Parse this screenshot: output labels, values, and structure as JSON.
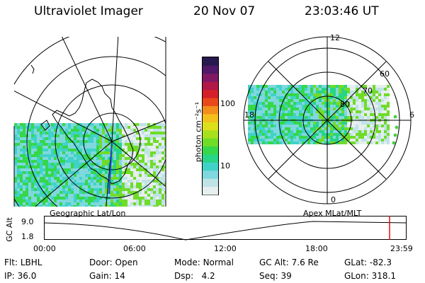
{
  "header": {
    "instrument": "Ultraviolet Imager",
    "date": "20 Nov 07",
    "time": "23:03:46 UT"
  },
  "colorbar": {
    "unit_label": "photon cm⁻²s⁻¹",
    "ticks": [
      "100",
      "10"
    ],
    "colors": [
      "#e6eeee",
      "#bfe3e6",
      "#7fd8de",
      "#40d2c8",
      "#28d486",
      "#34d84a",
      "#70dc28",
      "#a8e01e",
      "#dce01a",
      "#f2c01c",
      "#f28e1c",
      "#e8481a",
      "#d4202a",
      "#b01848",
      "#801864",
      "#501868",
      "#281850"
    ]
  },
  "geo_panel": {
    "caption": "Geographic Lat/Lon"
  },
  "polar_panel": {
    "caption": "Apex MLat/MLT",
    "mlt_labels": [
      "12",
      "18",
      "6",
      "0"
    ],
    "lat_labels": [
      "60",
      "70",
      "80"
    ]
  },
  "timeline": {
    "axis_label": "GC Alt",
    "y_ticks": [
      "9.0",
      "1.8"
    ],
    "x_ticks": [
      "00:00",
      "06:00",
      "12:00",
      "18:00",
      "23:59"
    ],
    "marker_color": "#dd0000"
  },
  "footer": {
    "flt_label": "Flt:",
    "flt_value": "LBHL",
    "ip_label": "IP:",
    "ip_value": "36.0",
    "door_label": "Door:",
    "door_value": "Open",
    "gain_label": "Gain:",
    "gain_value": "14",
    "mode_label": "Mode:",
    "mode_value": "Normal",
    "dsp_label": "Dsp:",
    "dsp_value": "4.2",
    "gcalt_label": "GC Alt:",
    "gcalt_value": "7.6 Re",
    "seq_label": "Seq:",
    "seq_value": "39",
    "glat_label": "GLat:",
    "glat_value": "-82.3",
    "glon_label": "GLon:",
    "glon_value": "318.1"
  }
}
